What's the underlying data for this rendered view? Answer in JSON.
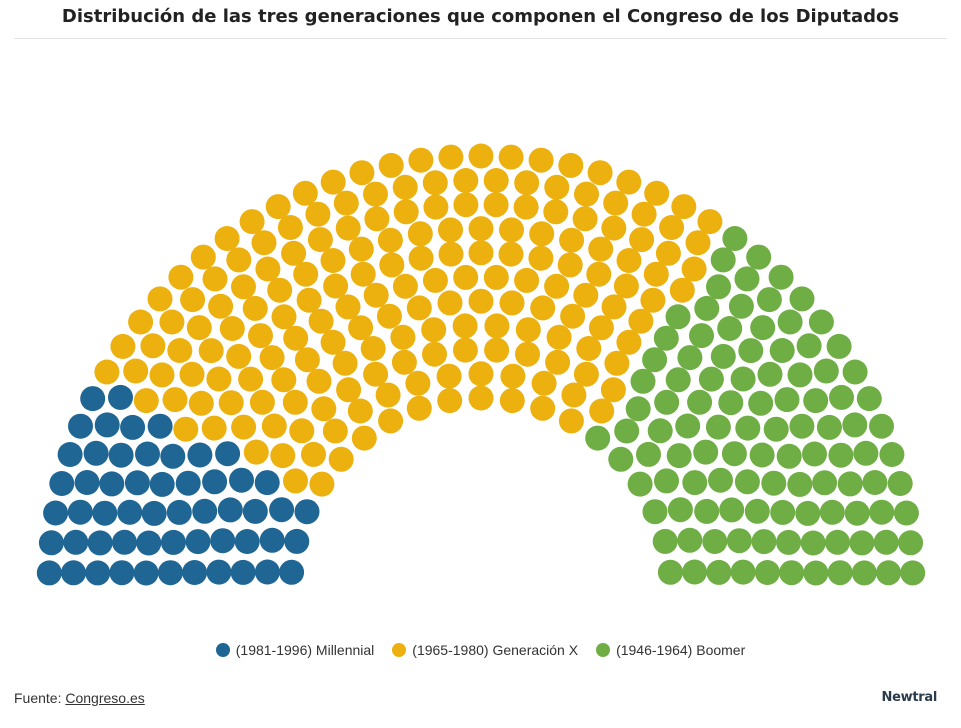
{
  "title": "Distribución de las tres generaciones que componen el Congreso de los Diputados",
  "chart_data": {
    "type": "parliament",
    "title": "Distribución de las tres generaciones que componen el Congreso de los Diputados",
    "total_seats": 350,
    "series": [
      {
        "name": "(1981-1996) Millennial",
        "value": 55,
        "color": "#1f6694"
      },
      {
        "name": "(1965-1980) Generación X",
        "value": 188,
        "color": "#ecb00f"
      },
      {
        "name": "(1946-1964) Boomer",
        "value": 107,
        "color": "#6fad45"
      }
    ],
    "legend_position": "bottom"
  },
  "legend": [
    {
      "label": "(1981-1996) Millennial",
      "color": "#1f6694"
    },
    {
      "label": "(1965-1980) Generación X",
      "color": "#ecb00f"
    },
    {
      "label": "(1946-1964) Boomer",
      "color": "#6fad45"
    }
  ],
  "footer": {
    "source_prefix": "Fuente: ",
    "source_link": "Congreso.es",
    "brand": "Newtral"
  }
}
